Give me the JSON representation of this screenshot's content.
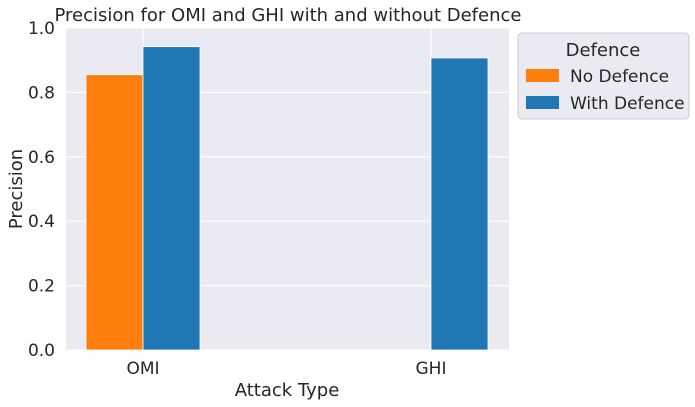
{
  "chart_data": {
    "type": "bar",
    "title": "Precision for OMI and GHI with and without Defence",
    "xlabel": "Attack Type",
    "ylabel": "Precision",
    "ylim": [
      0,
      1.0
    ],
    "yticks": [
      "0.0",
      "0.2",
      "0.4",
      "0.6",
      "0.8",
      "1.0"
    ],
    "categories": [
      "OMI",
      "GHI"
    ],
    "grid": true,
    "legend": {
      "title": "Defence",
      "placement": "outside-top-right"
    },
    "series": [
      {
        "name": "No Defence",
        "color": "#ff7f0e",
        "values": [
          0.855,
          null
        ]
      },
      {
        "name": "With Defence",
        "color": "#1f77b4",
        "values": [
          0.942,
          0.907
        ]
      }
    ]
  }
}
